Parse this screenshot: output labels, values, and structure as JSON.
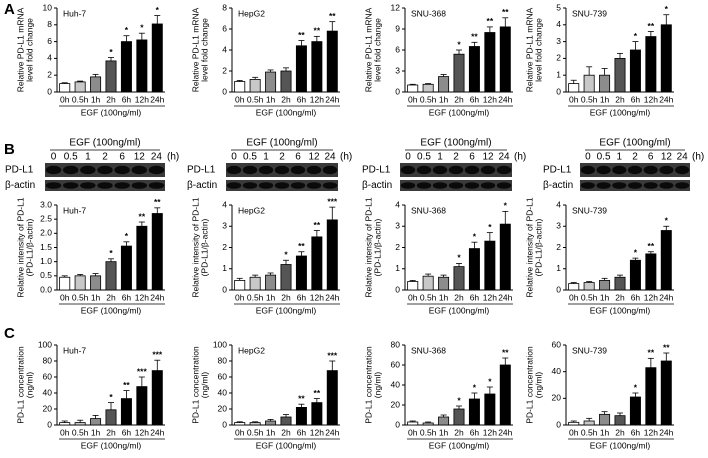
{
  "panel_labels": [
    "A",
    "B",
    "C"
  ],
  "blots": [
    {
      "treatment": "EGF (100ng/ml)",
      "lanes": [
        "0",
        "0.5",
        "1",
        "2",
        "6",
        "12",
        "24"
      ],
      "unit": "(h)",
      "rows": [
        "PD-L1",
        "β-actin"
      ]
    },
    {
      "treatment": "EGF (100ng/ml)",
      "lanes": [
        "0",
        "0.5",
        "1",
        "2",
        "6",
        "12",
        "24"
      ],
      "unit": "(h)",
      "rows": [
        "PD-L1",
        "β-actin"
      ]
    },
    {
      "treatment": "EGF (100ng/ml)",
      "lanes": [
        "0",
        "0.5",
        "1",
        "2",
        "6",
        "12",
        "24"
      ],
      "unit": "(h)",
      "rows": [
        "PD-L1",
        "β-actin"
      ]
    },
    {
      "treatment": "EGF (100ng/ml)",
      "lanes": [
        "0",
        "0.5",
        "1",
        "2",
        "6",
        "12",
        "24"
      ],
      "unit": "(h)",
      "rows": [
        "PD-L1",
        "β-actin"
      ]
    }
  ],
  "chart_data": [
    {
      "type": "bar",
      "title": "Huh-7",
      "ylabel": [
        "Relative PD-L1 mRNA",
        "level fold change"
      ],
      "xlabel": "EGF (100ng/ml)",
      "categories": [
        "0h",
        "0.5h",
        "1h",
        "2h",
        "6h",
        "12h",
        "24h"
      ],
      "values": [
        1,
        1.2,
        1.8,
        3.7,
        6.0,
        6.2,
        8.1
      ],
      "errors": [
        0.1,
        0.1,
        0.3,
        0.4,
        0.7,
        0.8,
        1.0
      ],
      "annotations": [
        null,
        null,
        null,
        "*",
        "*",
        "*",
        "*"
      ],
      "colors": [
        "#ffffff",
        "#c8c8c8",
        "#8c8c8c",
        "#555555",
        "#000000",
        "#000000",
        "#000000"
      ],
      "ylim": [
        0,
        10
      ],
      "yticks": [
        0,
        2,
        4,
        6,
        8,
        10
      ]
    },
    {
      "type": "bar",
      "title": "HepG2",
      "ylabel": [
        "Relative PD-L1 mRNA",
        "level fold change"
      ],
      "xlabel": "EGF (100ng/ml)",
      "categories": [
        "0h",
        "0.5h",
        "1h",
        "2h",
        "6h",
        "12h",
        "24h"
      ],
      "values": [
        1,
        1.2,
        1.9,
        2.0,
        4.4,
        4.8,
        5.8
      ],
      "errors": [
        0.1,
        0.2,
        0.2,
        0.3,
        0.5,
        0.5,
        0.9
      ],
      "annotations": [
        null,
        null,
        null,
        null,
        "**",
        "**",
        "**"
      ],
      "colors": [
        "#ffffff",
        "#c8c8c8",
        "#8c8c8c",
        "#555555",
        "#000000",
        "#000000",
        "#000000"
      ],
      "ylim": [
        0,
        8
      ],
      "yticks": [
        0,
        2,
        4,
        6,
        8
      ]
    },
    {
      "type": "bar",
      "title": "SNU-368",
      "ylabel": [
        "Relative PD-L1 mRNA",
        "level fold change"
      ],
      "xlabel": "EGF (100ng/ml)",
      "categories": [
        "0h",
        "0.5h",
        "1h",
        "2h",
        "6h",
        "12h",
        "24h"
      ],
      "values": [
        1,
        1.1,
        2.2,
        5.4,
        6.5,
        8.5,
        9.3
      ],
      "errors": [
        0.1,
        0.1,
        0.3,
        0.6,
        0.6,
        0.8,
        1.3
      ],
      "annotations": [
        null,
        null,
        null,
        "*",
        "**",
        "**",
        "**"
      ],
      "colors": [
        "#ffffff",
        "#c8c8c8",
        "#8c8c8c",
        "#555555",
        "#000000",
        "#000000",
        "#000000"
      ],
      "ylim": [
        0,
        12
      ],
      "yticks": [
        0,
        3,
        6,
        9,
        12
      ]
    },
    {
      "type": "bar",
      "title": "SNU-739",
      "ylabel": [
        "Relative PD-L1 mRNA",
        "level fold change"
      ],
      "xlabel": "EGF (100ng/ml)",
      "categories": [
        "0h",
        "0.5h",
        "1h",
        "2h",
        "6h",
        "12h",
        "24h"
      ],
      "values": [
        0.5,
        1.0,
        1.0,
        2.0,
        2.5,
        3.3,
        4.0
      ],
      "errors": [
        0.2,
        0.5,
        0.4,
        0.3,
        0.5,
        0.3,
        0.6
      ],
      "annotations": [
        null,
        null,
        null,
        null,
        "*",
        "**",
        "*"
      ],
      "colors": [
        "#ffffff",
        "#c8c8c8",
        "#8c8c8c",
        "#555555",
        "#000000",
        "#000000",
        "#000000"
      ],
      "ylim": [
        0,
        5
      ],
      "yticks": [
        0,
        1,
        2,
        3,
        4,
        5
      ]
    },
    {
      "type": "bar",
      "title": "Huh-7",
      "ylabel": [
        "Relative intensity of PD-L1",
        "(PD-L1/β-actin)"
      ],
      "xlabel": "EGF (100ng/ml)",
      "categories": [
        "0h",
        "0.5h",
        "1h",
        "2h",
        "6h",
        "12h",
        "24h"
      ],
      "values": [
        0.45,
        0.5,
        0.5,
        1.0,
        1.55,
        2.25,
        2.7
      ],
      "errors": [
        0.05,
        0.05,
        0.08,
        0.1,
        0.15,
        0.15,
        0.2
      ],
      "annotations": [
        null,
        null,
        null,
        "*",
        "*",
        "**",
        "**"
      ],
      "colors": [
        "#ffffff",
        "#c8c8c8",
        "#8c8c8c",
        "#555555",
        "#000000",
        "#000000",
        "#000000"
      ],
      "ylim": [
        0,
        3
      ],
      "yticks": [
        {
          "value": 0,
          "label": "0.0"
        },
        {
          "value": 0.5,
          "label": "0.5"
        },
        {
          "value": 1,
          "label": "1.0"
        },
        {
          "value": 1.5,
          "label": "1.5"
        },
        {
          "value": 2,
          "label": "2.0"
        },
        {
          "value": 2.5,
          "label": "2.5"
        },
        {
          "value": 3,
          "label": "3.0"
        }
      ]
    },
    {
      "type": "bar",
      "title": "HepG2",
      "ylabel": [
        "Relative intensity of PD-L1",
        "(PD-L1/β-actin)"
      ],
      "xlabel": "EGF (100ng/ml)",
      "categories": [
        "0h",
        "0.5h",
        "1h",
        "2h",
        "6h",
        "12h",
        "24h"
      ],
      "values": [
        0.45,
        0.6,
        0.7,
        1.2,
        1.6,
        2.5,
        3.3
      ],
      "errors": [
        0.1,
        0.1,
        0.1,
        0.2,
        0.2,
        0.3,
        0.6
      ],
      "annotations": [
        null,
        null,
        null,
        "*",
        "**",
        "**",
        "***"
      ],
      "colors": [
        "#ffffff",
        "#c8c8c8",
        "#8c8c8c",
        "#555555",
        "#000000",
        "#000000",
        "#000000"
      ],
      "ylim": [
        0,
        4
      ],
      "yticks": [
        0,
        1,
        2,
        3,
        4
      ]
    },
    {
      "type": "bar",
      "title": "SNU-368",
      "ylabel": [
        "Relative intensity of PD-L1",
        "(PD-L1/β-actin)"
      ],
      "xlabel": "EGF (100ng/ml)",
      "categories": [
        "0h",
        "0.5h",
        "1h",
        "2h",
        "6h",
        "12h",
        "24h"
      ],
      "values": [
        0.4,
        0.65,
        0.6,
        1.1,
        1.95,
        2.3,
        3.1
      ],
      "errors": [
        0.05,
        0.1,
        0.1,
        0.15,
        0.3,
        0.4,
        0.6
      ],
      "annotations": [
        null,
        null,
        null,
        "*",
        "*",
        "*",
        "*"
      ],
      "colors": [
        "#ffffff",
        "#c8c8c8",
        "#8c8c8c",
        "#555555",
        "#000000",
        "#000000",
        "#000000"
      ],
      "ylim": [
        0,
        4
      ],
      "yticks": [
        0,
        1,
        2,
        3,
        4
      ]
    },
    {
      "type": "bar",
      "title": "SNU-739",
      "ylabel": [
        "Relative intensity of PD-L1",
        "(PD-L1/β-actin)"
      ],
      "xlabel": "EGF (100ng/ml)",
      "categories": [
        "0h",
        "0.5h",
        "1h",
        "2h",
        "6h",
        "12h",
        "24h"
      ],
      "values": [
        0.3,
        0.35,
        0.45,
        0.6,
        1.4,
        1.7,
        2.8
      ],
      "errors": [
        0.05,
        0.05,
        0.1,
        0.1,
        0.1,
        0.1,
        0.2
      ],
      "annotations": [
        null,
        null,
        null,
        null,
        "*",
        "**",
        "*"
      ],
      "colors": [
        "#ffffff",
        "#c8c8c8",
        "#8c8c8c",
        "#555555",
        "#000000",
        "#000000",
        "#000000"
      ],
      "ylim": [
        0,
        4
      ],
      "yticks": [
        0,
        1,
        2,
        3,
        4
      ]
    },
    {
      "type": "bar",
      "title": "Huh-7",
      "ylabel": [
        "PD-L1 concentration",
        "(ng/ml)"
      ],
      "xlabel": "EGF (100ng/ml)",
      "categories": [
        "0h",
        "0.5h",
        "1h",
        "2h",
        "6h",
        "12h",
        "24h"
      ],
      "values": [
        3,
        3,
        8,
        19,
        33,
        48,
        68
      ],
      "errors": [
        2,
        3,
        4,
        9,
        10,
        12,
        13
      ],
      "annotations": [
        null,
        null,
        null,
        "*",
        "**",
        "***",
        "***"
      ],
      "colors": [
        "#ffffff",
        "#c8c8c8",
        "#8c8c8c",
        "#555555",
        "#000000",
        "#000000",
        "#000000"
      ],
      "ylim": [
        0,
        100
      ],
      "yticks": [
        0,
        20,
        40,
        60,
        80,
        100
      ]
    },
    {
      "type": "bar",
      "title": "HepG2",
      "ylabel": [
        "PD-L1 concentration",
        "(ng/ml)"
      ],
      "xlabel": "EGF (100ng/ml)",
      "categories": [
        "0h",
        "0.5h",
        "1h",
        "2h",
        "6h",
        "12h",
        "24h"
      ],
      "values": [
        3,
        3,
        5,
        10,
        22,
        28,
        68
      ],
      "errors": [
        1,
        1,
        2,
        3,
        4,
        5,
        12
      ],
      "annotations": [
        null,
        null,
        null,
        null,
        "**",
        "**",
        "***"
      ],
      "colors": [
        "#ffffff",
        "#c8c8c8",
        "#8c8c8c",
        "#555555",
        "#000000",
        "#000000",
        "#000000"
      ],
      "ylim": [
        0,
        100
      ],
      "yticks": [
        0,
        20,
        40,
        60,
        80,
        100
      ]
    },
    {
      "type": "bar",
      "title": "SNU-368",
      "ylabel": [
        "PD-L1 concentration",
        "(ng/ml)"
      ],
      "xlabel": "EGF (100ng/ml)",
      "categories": [
        "0h",
        "0.5h",
        "1h",
        "2h",
        "6h",
        "12h",
        "24h"
      ],
      "values": [
        3,
        2,
        8,
        16,
        26,
        31,
        60
      ],
      "errors": [
        1,
        1,
        2,
        3,
        6,
        7,
        7
      ],
      "annotations": [
        null,
        null,
        null,
        "*",
        "*",
        "*",
        "**"
      ],
      "colors": [
        "#ffffff",
        "#c8c8c8",
        "#8c8c8c",
        "#555555",
        "#000000",
        "#000000",
        "#000000"
      ],
      "ylim": [
        0,
        80
      ],
      "yticks": [
        0,
        20,
        40,
        60,
        80
      ]
    },
    {
      "type": "bar",
      "title": "SNU-739",
      "ylabel": [
        "PD-L1 concentration",
        "(ng/ml)"
      ],
      "xlabel": "EGF (100ng/ml)",
      "categories": [
        "0h",
        "0.5h",
        "1h",
        "2h",
        "6h",
        "12h",
        "24h"
      ],
      "values": [
        2,
        3,
        8,
        7,
        21,
        43,
        48
      ],
      "errors": [
        1,
        2,
        2,
        2,
        3,
        7,
        6
      ],
      "annotations": [
        null,
        null,
        null,
        null,
        "*",
        "**",
        "**"
      ],
      "colors": [
        "#ffffff",
        "#c8c8c8",
        "#8c8c8c",
        "#555555",
        "#000000",
        "#000000",
        "#000000"
      ],
      "ylim": [
        0,
        60
      ],
      "yticks": [
        0,
        20,
        40,
        60
      ]
    }
  ]
}
